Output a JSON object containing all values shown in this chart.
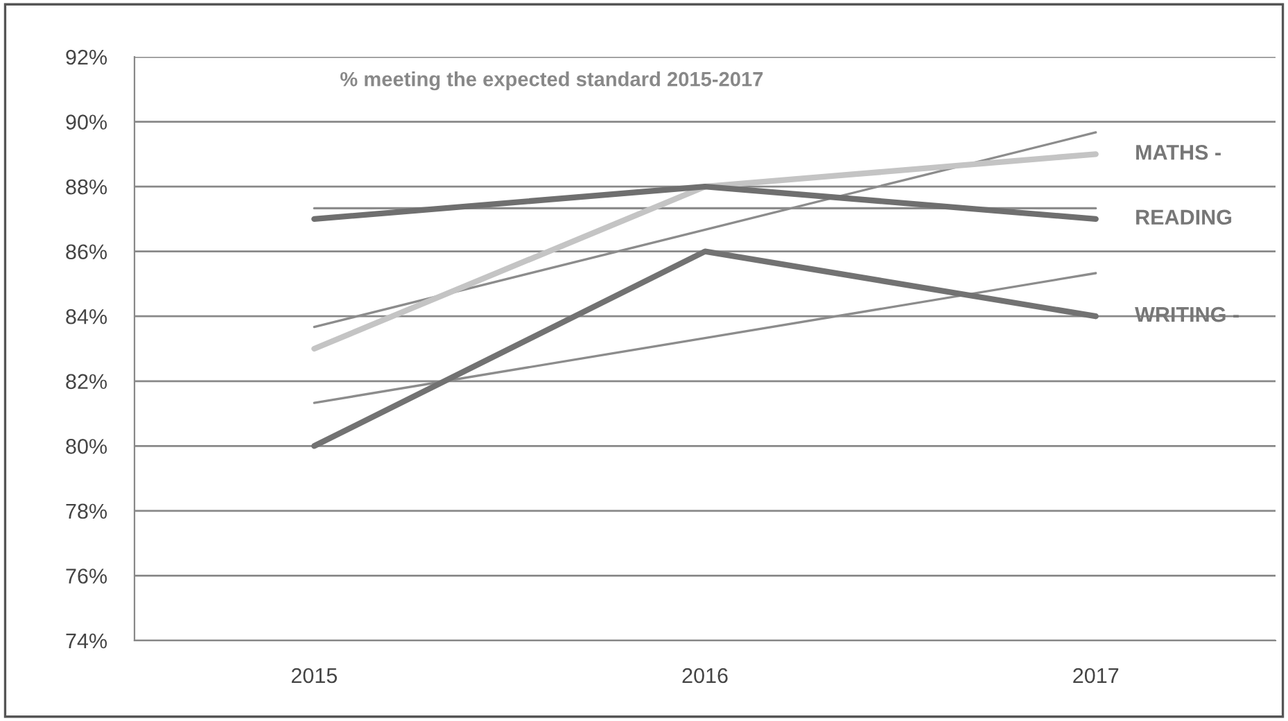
{
  "chart_data": {
    "type": "line",
    "title": "% meeting the expected standard 2015-2017",
    "categories": [
      "2015",
      "2016",
      "2017"
    ],
    "series": [
      {
        "name": "MATHS -",
        "color": "#c4c4c4",
        "values": [
          83,
          88,
          89
        ]
      },
      {
        "name": "READING",
        "color": "#6f6f6f",
        "values": [
          87,
          88,
          87
        ]
      },
      {
        "name": "WRITING -",
        "color": "#727272",
        "values": [
          80,
          86,
          84
        ]
      },
      {
        "type": "line",
        "color": "#8c8c8c",
        "values": [
          83.67,
          86.67,
          89.67
        ]
      },
      {
        "type": "line",
        "color": "#8c8c8c",
        "values": [
          87.33,
          87.33,
          87.33
        ]
      },
      {
        "type": "line",
        "color": "#8c8c8c",
        "values": [
          81.33,
          83.33,
          85.33
        ]
      }
    ],
    "ylim": [
      74,
      92
    ],
    "yticks": [
      {
        "value": 74,
        "label": "74%"
      },
      {
        "value": 76,
        "label": "76%"
      },
      {
        "value": 78,
        "label": "78%"
      },
      {
        "value": 80,
        "label": "80%"
      },
      {
        "value": 82,
        "label": "82%"
      },
      {
        "value": 84,
        "label": "84%"
      },
      {
        "value": 86,
        "label": "86%"
      },
      {
        "value": 88,
        "label": "88%"
      },
      {
        "value": 90,
        "label": "90%"
      },
      {
        "value": 92,
        "label": "92%"
      }
    ],
    "grid": "y",
    "marker": "none",
    "line_style": "solid",
    "legend": false
  }
}
